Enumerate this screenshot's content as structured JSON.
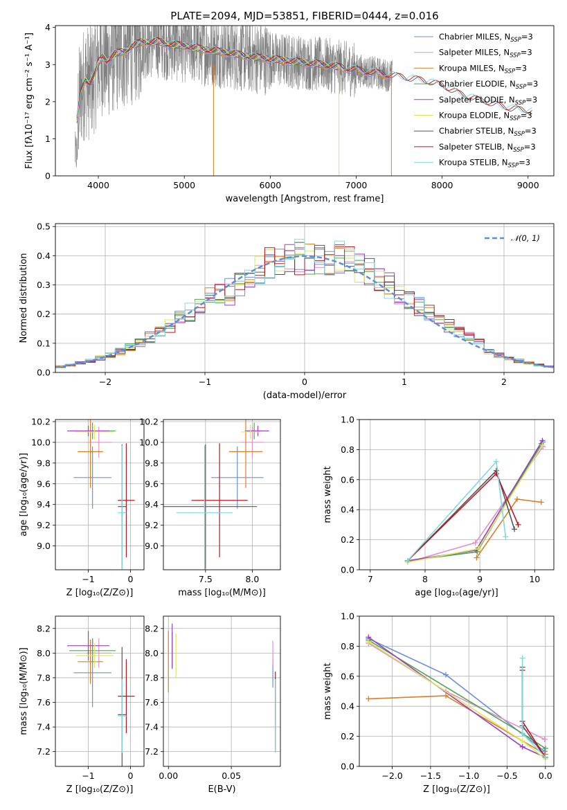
{
  "title": "PLATE=2094, MJD=53851, FIBERID=0444, z=0.016",
  "colors": {
    "Chabrier MILES": "#6c8fd8",
    "Salpeter MILES": "#e38fc8",
    "Kroupa MILES": "#e07c24",
    "Chabrier ELODIE": "#4fa64f",
    "Salpeter ELODIE": "#9b3fc0",
    "Kroupa ELODIE": "#d8e85a",
    "Chabrier STELIB": "#555555",
    "Salpeter STELIB": "#c0141c",
    "Kroupa STELIB": "#7fd8de",
    "data": "#808080",
    "normal": "#5b8fd8"
  },
  "chart_data": [
    {
      "id": "spectrum",
      "type": "line",
      "xlabel": "wavelength [Angstrom, rest frame]",
      "ylabel": "Flux [fλ10⁻¹⁷ erg cm⁻² s⁻¹ A⁻¹]",
      "xlim": [
        3500,
        9300
      ],
      "ylim": [
        0,
        4.05
      ],
      "xticks": [
        "4000",
        "5000",
        "6000",
        "7000",
        "8000",
        "9000"
      ],
      "yticks": [
        "0",
        "1",
        "2",
        "3",
        "4"
      ],
      "legend_position": "upper right",
      "legend": [
        {
          "name": "Chabrier MILES",
          "label": "Chabrier MILES, N",
          "sub": "SSP",
          "suffix": "=3"
        },
        {
          "name": "Salpeter MILES",
          "label": "Salpeter MILES, N",
          "sub": "SSP",
          "suffix": "=3"
        },
        {
          "name": "Kroupa MILES",
          "label": "Kroupa MILES, N",
          "sub": "SSP",
          "suffix": "=3"
        },
        {
          "name": "Chabrier ELODIE",
          "label": "Chabrier ELODIE, N",
          "sub": "SSP",
          "suffix": "=3"
        },
        {
          "name": "Salpeter ELODIE",
          "label": "Salpeter ELODIE, N",
          "sub": "SSP",
          "suffix": "=3"
        },
        {
          "name": "Kroupa ELODIE",
          "label": "Kroupa ELODIE, N",
          "sub": "SSP",
          "suffix": "=3"
        },
        {
          "name": "Chabrier STELIB",
          "label": "Chabrier STELIB, N",
          "sub": "SSP",
          "suffix": "=3"
        },
        {
          "name": "Salpeter STELIB",
          "label": "Salpeter STELIB, N",
          "sub": "SSP",
          "suffix": "=3"
        },
        {
          "name": "Kroupa STELIB",
          "label": "Kroupa STELIB, N",
          "sub": "SSP",
          "suffix": "=3"
        }
      ],
      "model_range": {
        "MILES": [
          3750,
          7420
        ],
        "ELODIE": [
          3750,
          6800
        ],
        "STELIB": [
          3750,
          9050
        ]
      },
      "model_curve": {
        "x": [
          3750,
          3800,
          3850,
          3900,
          3950,
          4000,
          4050,
          4100,
          4200,
          4300,
          4400,
          4500,
          4600,
          4700,
          4800,
          5000,
          5200,
          5400,
          5600,
          5800,
          6000,
          6200,
          6400,
          6600,
          6800,
          7000,
          7200,
          7400,
          7600,
          7800,
          8000,
          8200,
          8400,
          8600,
          8800,
          9050
        ],
        "y": [
          1.5,
          2.3,
          2.6,
          2.5,
          2.7,
          3.05,
          3.2,
          3.1,
          3.3,
          3.35,
          3.5,
          3.6,
          3.6,
          3.62,
          3.55,
          3.5,
          3.42,
          3.35,
          3.28,
          3.2,
          3.15,
          3.1,
          3.05,
          3.0,
          2.93,
          2.85,
          2.78,
          2.7,
          2.62,
          2.55,
          2.42,
          2.2,
          2.05,
          1.92,
          1.8,
          1.72
        ]
      },
      "data_range": [
        3730,
        7420
      ]
    },
    {
      "id": "residual_hist",
      "type": "histogram",
      "xlabel": "(data-model)/error",
      "ylabel": "Normed distribution",
      "xlim": [
        -2.5,
        2.5
      ],
      "ylim": [
        0,
        0.51
      ],
      "xticks": [
        "−2",
        "−1",
        "0",
        "1",
        "2"
      ],
      "yticks": [
        "0.0",
        "0.1",
        "0.2",
        "0.3",
        "0.4",
        "0.5"
      ],
      "bin_width": 0.1,
      "bin_start": -2.5,
      "legend": [
        {
          "name": "normal",
          "label": "𝒩(0, 1)"
        }
      ],
      "legend_position": "upper right"
    },
    {
      "id": "age_vs_Z",
      "type": "errorbar",
      "xlabel": "Z [log₁₀(Z/Z⊙)]",
      "ylabel": "age  [log₁₀(age/yr)]",
      "xlim": [
        -1.78,
        0.32
      ],
      "ylim": [
        8.77,
        10.22
      ],
      "xticks": [
        "−1",
        "0"
      ],
      "yticks": [
        "9.0",
        "9.2",
        "9.4",
        "9.6",
        "9.8",
        "10.0",
        "10.2"
      ]
    },
    {
      "id": "age_vs_mass",
      "type": "errorbar",
      "xlabel": "mass [log₁₀(M/M⊙)]",
      "ylabel": "",
      "xlim": [
        7.05,
        8.3
      ],
      "ylim": [
        8.77,
        10.22
      ],
      "xticks": [
        "7.5",
        "8.0"
      ],
      "yticks": [
        "9.0",
        "9.2",
        "9.4",
        "9.6",
        "9.8",
        "10.0",
        "10.2"
      ]
    },
    {
      "id": "massweight_vs_age",
      "type": "line",
      "xlabel": "age  [log₁₀(age/yr)]",
      "ylabel": "mass weight",
      "xlim": [
        6.8,
        10.35
      ],
      "ylim": [
        0,
        1.0
      ],
      "xticks": [
        "7",
        "8",
        "9",
        "10"
      ],
      "yticks": [
        "0.0",
        "0.2",
        "0.4",
        "0.6",
        "0.8",
        "1.0"
      ]
    },
    {
      "id": "mass_vs_Z",
      "type": "errorbar",
      "xlabel": "Z [log₁₀(Z/Z⊙)]",
      "ylabel": "mass [log₁₀(M/M⊙)]",
      "xlim": [
        -1.78,
        0.32
      ],
      "ylim": [
        7.08,
        8.3
      ],
      "xticks": [
        "−1",
        "0"
      ],
      "yticks": [
        "7.2",
        "7.4",
        "7.6",
        "7.8",
        "8.0",
        "8.2"
      ]
    },
    {
      "id": "mass_vs_ebv",
      "type": "errorbar",
      "xlabel": "E(B-V)",
      "ylabel": "",
      "xlim": [
        -0.004,
        0.089
      ],
      "ylim": [
        7.08,
        8.3
      ],
      "xticks": [
        "0.00",
        "0.05"
      ],
      "yticks": [
        "7.2",
        "7.4",
        "7.6",
        "7.8",
        "8.0",
        "8.2"
      ]
    },
    {
      "id": "massweight_vs_Z",
      "type": "line",
      "xlabel": "Z [log₁₀(Z/Z⊙)]",
      "ylabel": "mass weight",
      "xlim": [
        -2.43,
        0.11
      ],
      "ylim": [
        0,
        1.0
      ],
      "xticks": [
        "−2.0",
        "−1.5",
        "−1.0",
        "−0.5",
        "0.0"
      ],
      "yticks": [
        "0.0",
        "0.2",
        "0.4",
        "0.6",
        "0.8",
        "1.0"
      ]
    }
  ],
  "models": [
    {
      "name": "Chabrier MILES",
      "Z": -0.9,
      "Zerr": 0.45,
      "age": 9.66,
      "ageerr": 0.3,
      "mass": 7.84,
      "masserr": 0.28,
      "ebv": 0.083,
      "ebverr": 0.12,
      "ages": [
        7.68,
        8.95,
        10.15
      ],
      "Zs": [
        -2.31,
        -1.3,
        -0.01
      ],
      "w": [
        0.06,
        0.12,
        0.85
      ],
      "Zw": [
        0.85,
        0.61,
        0.1
      ]
    },
    {
      "name": "Salpeter MILES",
      "Z": -0.75,
      "Zerr": 0.3,
      "age": 10.0,
      "ageerr": 0.15,
      "mass": 8.0,
      "masserr": 0.12,
      "ebv": 0.083,
      "ebverr": 0.1,
      "ages": [
        7.68,
        8.92,
        10.15
      ],
      "Zs": [
        -2.31,
        -1.3,
        -0.01
      ],
      "w": [
        0.05,
        0.18,
        0.82
      ],
      "Zw": [
        0.82,
        0.5,
        0.18
      ]
    },
    {
      "name": "Kroupa MILES",
      "Z": -0.95,
      "Zerr": 0.3,
      "age": 9.91,
      "ageerr": 0.35,
      "mass": 7.93,
      "masserr": 0.18,
      "ebv": 0.0,
      "ebverr": 0.25,
      "ages": [
        8.94,
        9.68,
        10.12
      ],
      "Zs": [
        -2.31,
        -1.3,
        0.0
      ],
      "w": [
        0.08,
        0.47,
        0.45
      ],
      "Zw": [
        0.45,
        0.47,
        0.08
      ]
    },
    {
      "name": "Chabrier ELODIE",
      "Z": -0.9,
      "Zerr": 0.55,
      "age": 10.11,
      "ageerr": 0.08,
      "mass": 8.02,
      "masserr": 0.1,
      "ebv": 0.003,
      "ebverr": 0.15,
      "ages": [
        7.68,
        8.95,
        10.12
      ],
      "Zs": [
        -2.31,
        -0.3,
        0.0
      ],
      "w": [
        0.06,
        0.12,
        0.84
      ],
      "Zw": [
        0.84,
        0.22,
        0.12
      ]
    },
    {
      "name": "Salpeter ELODIE",
      "Z": -1.0,
      "Zerr": 0.5,
      "age": 10.11,
      "ageerr": 0.05,
      "mass": 8.06,
      "masserr": 0.12,
      "ebv": 0.003,
      "ebverr": 0.18,
      "ages": [
        7.68,
        8.93,
        10.14
      ],
      "Zs": [
        -2.31,
        -0.3,
        0.0
      ],
      "w": [
        0.06,
        0.13,
        0.86
      ],
      "Zw": [
        0.86,
        0.13,
        0.06
      ]
    },
    {
      "name": "Kroupa ELODIE",
      "Z": -0.85,
      "Zerr": 0.45,
      "age": 10.1,
      "ageerr": 0.07,
      "mass": 7.98,
      "masserr": 0.1,
      "ebv": 0.006,
      "ebverr": 0.18,
      "ages": [
        7.68,
        8.97,
        10.14
      ],
      "Zs": [
        -2.31,
        -0.3,
        0.0
      ],
      "w": [
        0.05,
        0.14,
        0.83
      ],
      "Zw": [
        0.83,
        0.17,
        0.05
      ]
    },
    {
      "name": "Chabrier STELIB",
      "Z": -0.2,
      "Zerr": 0.1,
      "age": 9.38,
      "ageerr": 0.6,
      "mass": 7.5,
      "masserr": 0.55,
      "ebv": 0.085,
      "ebverr": 0.3,
      "ages": [
        7.68,
        9.3,
        9.63
      ],
      "Zs": [
        -0.3,
        -0.3,
        0.0
      ],
      "w": [
        0.06,
        0.66,
        0.27
      ],
      "Zw": [
        0.66,
        0.27,
        0.06
      ]
    },
    {
      "name": "Salpeter STELIB",
      "Z": -0.1,
      "Zerr": 0.2,
      "age": 9.44,
      "ageerr": 0.55,
      "mass": 7.65,
      "masserr": 0.3,
      "ebv": 0.085,
      "ebverr": 0.2,
      "ages": [
        7.68,
        9.3,
        9.7
      ],
      "Zs": [
        -0.3,
        -0.3,
        0.0
      ],
      "w": [
        0.06,
        0.64,
        0.3
      ],
      "Zw": [
        0.64,
        0.3,
        0.06
      ]
    },
    {
      "name": "Kroupa STELIB",
      "Z": -0.2,
      "Zerr": 0.1,
      "age": 9.32,
      "ageerr": 0.65,
      "mass": 7.49,
      "masserr": 0.3,
      "ebv": 0.085,
      "ebverr": 0.3,
      "ages": [
        7.68,
        9.3,
        9.47
      ],
      "Zs": [
        -0.3,
        -0.3,
        0.0
      ],
      "w": [
        0.06,
        0.72,
        0.22
      ],
      "Zw": [
        0.72,
        0.22,
        0.06
      ]
    }
  ]
}
